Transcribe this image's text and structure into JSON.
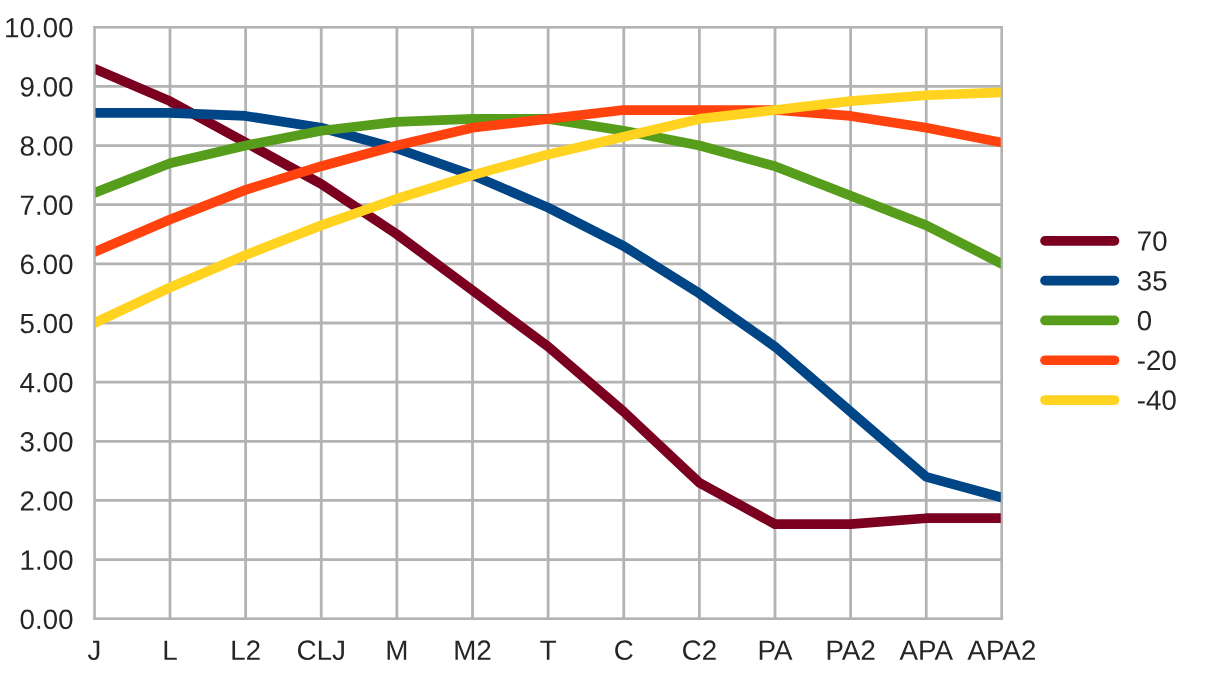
{
  "chart_data": {
    "type": "line",
    "categories": [
      "J",
      "L",
      "L2",
      "CLJ",
      "M",
      "M2",
      "T",
      "C",
      "C2",
      "PA",
      "PA2",
      "APA",
      "APA2"
    ],
    "series": [
      {
        "name": "70",
        "color": "#7b0020",
        "values": [
          9.3,
          8.75,
          8.05,
          7.35,
          6.5,
          5.55,
          4.6,
          3.5,
          2.3,
          1.6,
          1.6,
          1.7,
          1.7
        ]
      },
      {
        "name": "35",
        "color": "#004586",
        "values": [
          8.55,
          8.55,
          8.5,
          8.3,
          7.95,
          7.5,
          6.95,
          6.3,
          5.5,
          4.6,
          3.5,
          2.4,
          2.05
        ]
      },
      {
        "name": "0",
        "color": "#579d1c",
        "values": [
          7.2,
          7.7,
          8.0,
          8.25,
          8.4,
          8.45,
          8.45,
          8.25,
          8.0,
          7.65,
          7.15,
          6.65,
          6.0
        ]
      },
      {
        "name": "-20",
        "color": "#ff420e",
        "values": [
          6.2,
          6.75,
          7.25,
          7.65,
          8.0,
          8.3,
          8.45,
          8.6,
          8.6,
          8.6,
          8.5,
          8.3,
          8.05
        ]
      },
      {
        "name": "-40",
        "color": "#ffd320",
        "values": [
          5.0,
          5.6,
          6.15,
          6.65,
          7.1,
          7.5,
          7.85,
          8.15,
          8.45,
          8.6,
          8.75,
          8.85,
          8.9
        ]
      }
    ],
    "ylim": [
      0,
      10
    ],
    "yticks": [
      {
        "value": 0,
        "label": "0.00"
      },
      {
        "value": 1,
        "label": "1.00"
      },
      {
        "value": 2,
        "label": "2.00"
      },
      {
        "value": 3,
        "label": "3.00"
      },
      {
        "value": 4,
        "label": "4.00"
      },
      {
        "value": 5,
        "label": "5.00"
      },
      {
        "value": 6,
        "label": "6.00"
      },
      {
        "value": 7,
        "label": "7.00"
      },
      {
        "value": 8,
        "label": "8.00"
      },
      {
        "value": 9,
        "label": "9.00"
      },
      {
        "value": 10,
        "label": "10.00"
      }
    ],
    "grid": true,
    "legend": "right",
    "marker": "none",
    "line_style": "solid"
  }
}
